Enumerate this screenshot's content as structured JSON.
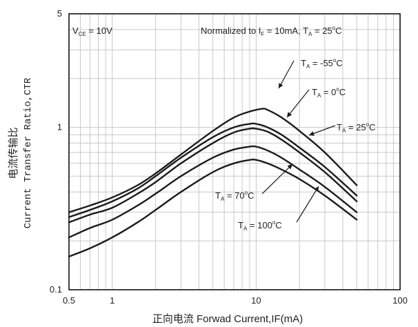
{
  "chart_data": {
    "type": "line",
    "title": "",
    "xlabel": "正向电流 Forwad Current,IF(mA)",
    "ylabel_cn": "电流传输比",
    "ylabel_en": "Current Transfer Ratio,CTR",
    "x_scale": "log",
    "y_scale": "log",
    "xlim": [
      0.5,
      100
    ],
    "ylim": [
      0.1,
      5
    ],
    "grid": true,
    "x_ticks": [
      {
        "value": 0.5,
        "label": "0.5"
      },
      {
        "value": 1,
        "label": "1"
      },
      {
        "value": 10,
        "label": "10"
      },
      {
        "value": 100,
        "label": "100"
      }
    ],
    "y_ticks": [
      {
        "value": 0.1,
        "label": "0.1"
      },
      {
        "value": 1,
        "label": "1"
      },
      {
        "value": 5,
        "label": "5"
      }
    ],
    "annotations": {
      "vce": {
        "main": "V",
        "sub": "CE",
        "rest": " = 10V"
      },
      "normalized": {
        "text": "Normalized to I",
        "sub": "F",
        "mid": " = 10mA, T",
        "sub2": "A",
        "rest": " = 25",
        "sup": "o",
        "end": "C"
      }
    },
    "series": [
      {
        "label_main": "T",
        "label_sub": "A",
        "label_rest": " = -55",
        "label_sup": "o",
        "label_end": "C",
        "x": [
          0.5,
          0.7,
          1,
          1.5,
          2,
          3,
          5,
          7,
          9,
          11,
          12,
          15,
          20,
          30,
          50
        ],
        "y": [
          0.3,
          0.33,
          0.37,
          0.44,
          0.52,
          0.68,
          0.95,
          1.15,
          1.25,
          1.3,
          1.28,
          1.15,
          0.95,
          0.7,
          0.44
        ]
      },
      {
        "label_main": "T",
        "label_sub": "A",
        "label_rest": " = 0",
        "label_sup": "o",
        "label_end": "C",
        "x": [
          0.5,
          0.7,
          1,
          1.5,
          2,
          3,
          5,
          7,
          9,
          10,
          12,
          15,
          20,
          30,
          50
        ],
        "y": [
          0.28,
          0.31,
          0.35,
          0.42,
          0.5,
          0.65,
          0.87,
          1.0,
          1.05,
          1.05,
          1.0,
          0.9,
          0.75,
          0.57,
          0.38
        ]
      },
      {
        "label_main": "T",
        "label_sub": "A",
        "label_rest": " = 25",
        "label_sup": "o",
        "label_end": "C",
        "x": [
          0.5,
          0.7,
          1,
          1.5,
          2,
          3,
          5,
          7,
          9,
          10,
          12,
          15,
          20,
          30,
          50
        ],
        "y": [
          0.26,
          0.29,
          0.32,
          0.39,
          0.46,
          0.6,
          0.8,
          0.93,
          0.98,
          0.98,
          0.94,
          0.84,
          0.7,
          0.53,
          0.35
        ]
      },
      {
        "label_main": "T",
        "label_sub": "A",
        "label_rest": " = 70",
        "label_sup": "o",
        "label_end": "C",
        "x": [
          0.5,
          0.7,
          1,
          1.5,
          2,
          3,
          5,
          7,
          9,
          10,
          12,
          15,
          20,
          30,
          50
        ],
        "y": [
          0.21,
          0.24,
          0.27,
          0.33,
          0.39,
          0.5,
          0.65,
          0.73,
          0.76,
          0.76,
          0.72,
          0.65,
          0.55,
          0.43,
          0.3
        ]
      },
      {
        "label_main": "T",
        "label_sub": "A",
        "label_rest": " = 100",
        "label_sup": "o",
        "label_end": "C",
        "x": [
          0.5,
          0.7,
          1,
          1.5,
          2,
          3,
          5,
          7,
          9,
          10,
          12,
          15,
          20,
          30,
          50
        ],
        "y": [
          0.16,
          0.18,
          0.21,
          0.26,
          0.31,
          0.4,
          0.53,
          0.6,
          0.63,
          0.63,
          0.6,
          0.55,
          0.48,
          0.38,
          0.27
        ]
      }
    ]
  }
}
